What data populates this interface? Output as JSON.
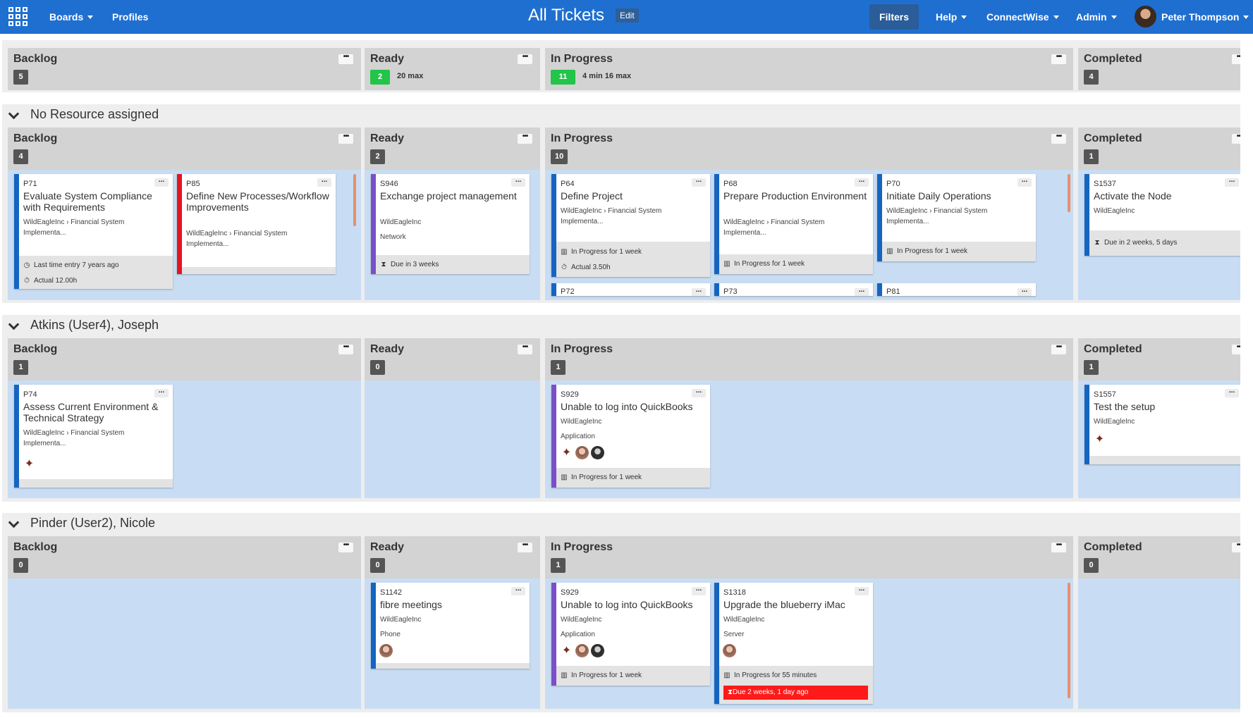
{
  "nav": {
    "apps_icon": "apps-grid-icon",
    "boards": "Boards",
    "profiles": "Profiles",
    "title": "All Tickets",
    "edit": "Edit",
    "filters": "Filters",
    "help": "Help",
    "connectwise": "ConnectWise",
    "admin": "Admin",
    "user": "Peter Thompson"
  },
  "summary": {
    "backlog": {
      "name": "Backlog",
      "count": "5"
    },
    "ready": {
      "name": "Ready",
      "count": "2",
      "max": "20 max"
    },
    "inprogress": {
      "name": "In Progress",
      "count": "11",
      "max": "4 min 16 max"
    },
    "completed": {
      "name": "Completed",
      "count": "4"
    }
  },
  "lanes": [
    {
      "title": "No Resource assigned",
      "columns": {
        "backlog": {
          "name": "Backlog",
          "count": "4"
        },
        "ready": {
          "name": "Ready",
          "count": "2"
        },
        "inprogress": {
          "name": "In Progress",
          "count": "10"
        },
        "completed": {
          "name": "Completed",
          "count": "1"
        }
      },
      "cards": {
        "p71": {
          "id": "P71",
          "title": "Evaluate System Compliance with Requirements",
          "company": "WildEagleInc › Financial System Implementa...",
          "last_entry": "Last time entry 7 years ago",
          "actual": "Actual 12.00h"
        },
        "p85": {
          "id": "P85",
          "title": "Define New Processes/Workflow Improvements",
          "company": "WildEagleInc › Financial System Implementa..."
        },
        "s946": {
          "id": "S946",
          "title": "Exchange project management",
          "company": "WildEagleInc",
          "type": "Network",
          "due": "Due in 3 weeks"
        },
        "p64": {
          "id": "P64",
          "title": "Define Project",
          "company": "WildEagleInc › Financial System Implementa...",
          "status": "In Progress for 1 week",
          "actual": "Actual 3.50h"
        },
        "p68": {
          "id": "P68",
          "title": "Prepare Production Environment",
          "company": "WildEagleInc › Financial System Implementa...",
          "status": "In Progress for 1 week"
        },
        "p70": {
          "id": "P70",
          "title": "Initiate Daily Operations",
          "company": "WildEagleInc › Financial System Implementa...",
          "status": "In Progress for 1 week"
        },
        "p72": {
          "id": "P72"
        },
        "p73": {
          "id": "P73"
        },
        "p81": {
          "id": "P81"
        },
        "s1537": {
          "id": "S1537",
          "title": "Activate the Node",
          "company": "WildEagleInc",
          "due": "Due in 2 weeks, 5 days"
        }
      }
    },
    {
      "title": "Atkins (User4), Joseph",
      "columns": {
        "backlog": {
          "name": "Backlog",
          "count": "1"
        },
        "ready": {
          "name": "Ready",
          "count": "0"
        },
        "inprogress": {
          "name": "In Progress",
          "count": "1"
        },
        "completed": {
          "name": "Completed",
          "count": "1"
        }
      },
      "cards": {
        "p74": {
          "id": "P74",
          "title": "Assess Current Environment & Technical Strategy",
          "company": "WildEagleInc › Financial System Implementa..."
        },
        "s929": {
          "id": "S929",
          "title": "Unable to log into QuickBooks",
          "company": "WildEagleInc",
          "type": "Application",
          "status": "In Progress for 1 week"
        },
        "s1557": {
          "id": "S1557",
          "title": "Test the setup",
          "company": "WildEagleInc"
        }
      }
    },
    {
      "title": "Pinder (User2), Nicole",
      "columns": {
        "backlog": {
          "name": "Backlog",
          "count": "0"
        },
        "ready": {
          "name": "Ready",
          "count": "0"
        },
        "inprogress": {
          "name": "In Progress",
          "count": "1"
        },
        "completed": {
          "name": "Completed",
          "count": "0"
        }
      },
      "cards": {
        "s1142": {
          "id": "S1142",
          "title": "fibre meetings",
          "company": "WildEagleInc",
          "type": "Phone"
        },
        "s929": {
          "id": "S929",
          "title": "Unable to log into QuickBooks",
          "company": "WildEagleInc",
          "type": "Application",
          "status": "In Progress for 1 week"
        },
        "s1318": {
          "id": "S1318",
          "title": "Upgrade the blueberry iMac",
          "company": "WildEagleInc",
          "type": "Server",
          "status": "In Progress for 55 minutes",
          "due": "Due 2 weeks, 1 day ago"
        }
      }
    }
  ],
  "colors": {
    "navbar": "#1f6fd0",
    "column_bg": "#c8ddf3",
    "header_bg": "#d3d3d3",
    "project_bar": "#1565c0",
    "urgent_bar": "#e5141f",
    "service_bar": "#7b4fc9",
    "wip_ok": "#22c449",
    "overdue": "#ff1a1a"
  },
  "icons": {
    "clock": "clock-icon",
    "stopwatch": "stopwatch-icon",
    "hourglass": "hourglass-icon",
    "board": "board-icon",
    "chevron": "chevron-down-icon",
    "more": "more-icon"
  }
}
